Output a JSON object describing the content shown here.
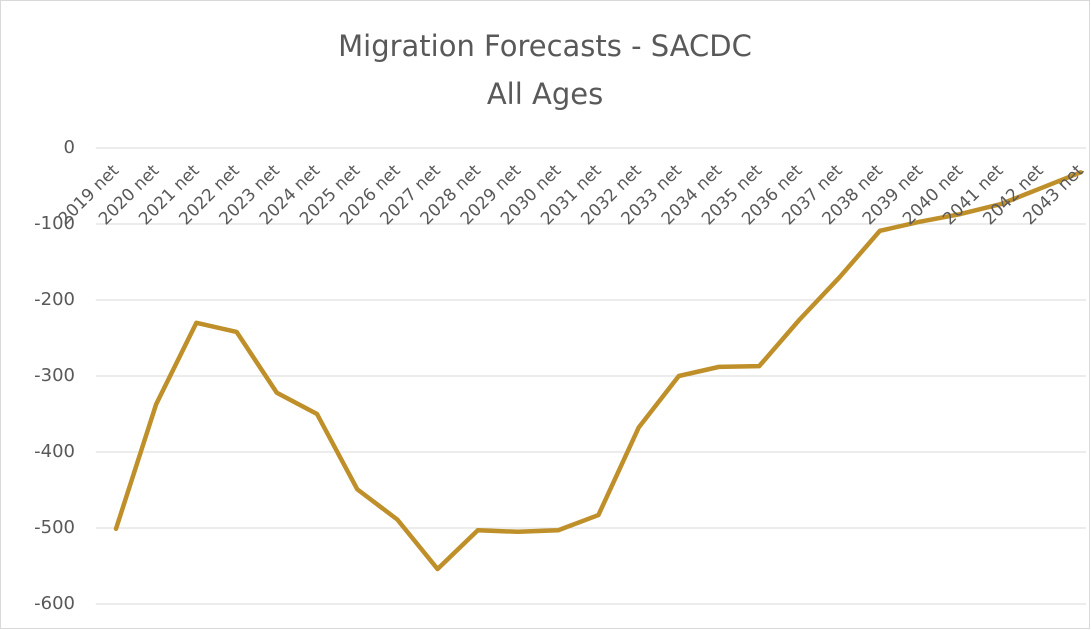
{
  "chart_data": {
    "type": "line",
    "title": "Migration Forecasts - SACDC",
    "subtitle": "All Ages",
    "categories": [
      "2019 net",
      "2020 net",
      "2021 net",
      "2022 net",
      "2023 net",
      "2024 net",
      "2025 net",
      "2026 net",
      "2027 net",
      "2028 net",
      "2029 net",
      "2030 net",
      "2031 net",
      "2032 net",
      "2033 net",
      "2034 net",
      "2035 net",
      "2036 net",
      "2037 net",
      "2038 net",
      "2039 net",
      "2040 net",
      "2041 net",
      "2042 net",
      "2043 net"
    ],
    "series": [
      {
        "name": "All Ages",
        "color": "#bf8f2a",
        "values": [
          -501,
          -337,
          -230,
          -242,
          -322,
          -350,
          -449,
          -489,
          -554,
          -503,
          -505,
          -503,
          -483,
          -368,
          -300,
          -288,
          -287,
          -226,
          -170,
          -109,
          -97,
          -87,
          -74,
          -53,
          -32
        ]
      }
    ],
    "ylim": [
      -600,
      0
    ],
    "yticks": [
      0,
      -100,
      -200,
      -300,
      -400,
      -500,
      -600
    ],
    "grid": true
  }
}
